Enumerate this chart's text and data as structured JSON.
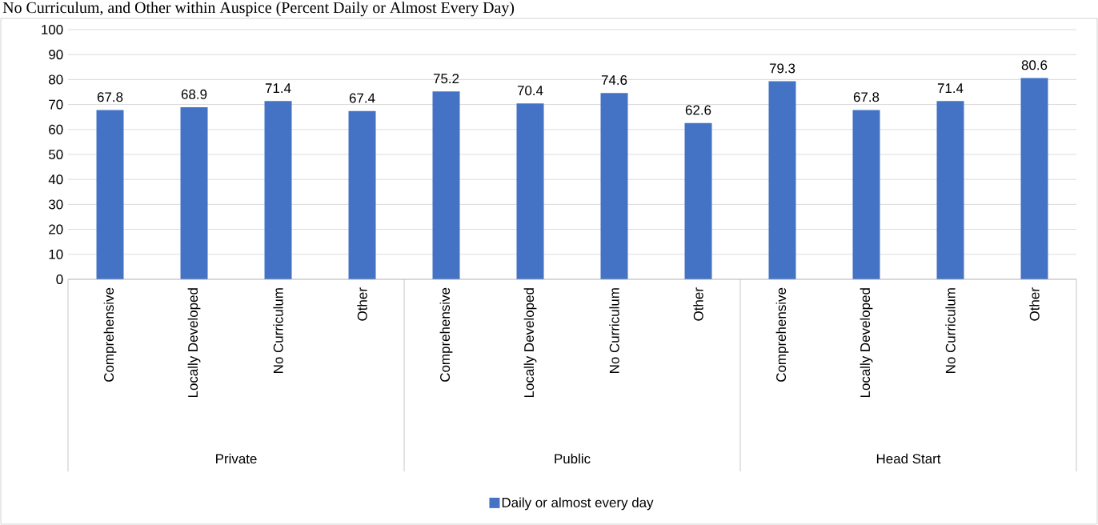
{
  "chart_data": {
    "type": "bar",
    "title": "No Curriculum, and Other within Auspice (Percent Daily or Almost Every Day)",
    "categories": [
      "Comprehensive",
      "Locally Developed",
      "No Curriculum",
      "Other",
      "Comprehensive",
      "Locally Developed",
      "No Curriculum",
      "Other",
      "Comprehensive",
      "Locally Developed",
      "No Curriculum",
      "Other"
    ],
    "series": [
      {
        "name": "Daily or almost every day",
        "color": "#4472c4",
        "values": [
          67.8,
          68.9,
          71.4,
          67.4,
          75.2,
          70.4,
          74.6,
          62.6,
          79.3,
          67.8,
          71.4,
          80.6
        ]
      }
    ],
    "annotations": [
      "Private",
      "Public",
      "Head Start"
    ],
    "ylim": [
      0,
      100
    ],
    "yticks": [
      0,
      10,
      20,
      30,
      40,
      50,
      60,
      70,
      80,
      90,
      100
    ],
    "grid": "y",
    "data_labels": true,
    "legend": "bottom"
  }
}
